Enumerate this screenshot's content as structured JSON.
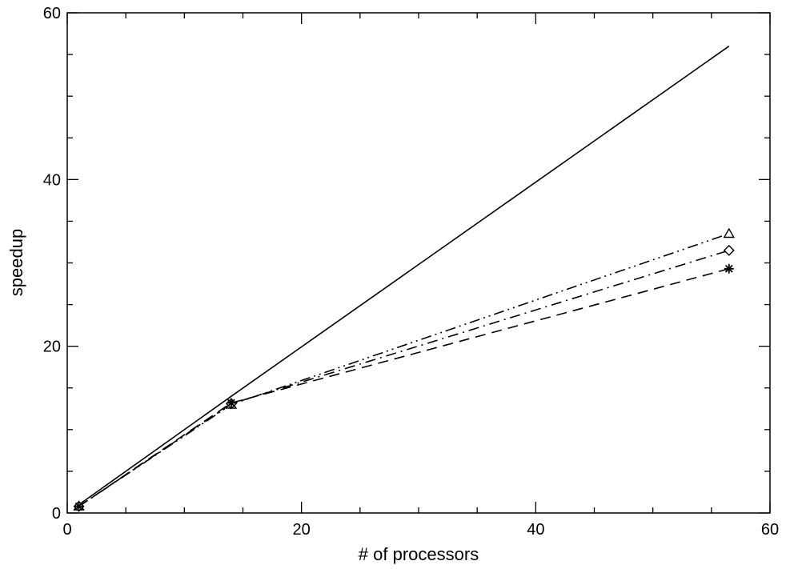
{
  "chart_data": {
    "type": "line",
    "title": "",
    "xlabel": "# of processors",
    "ylabel": "speedup",
    "xlim": [
      0,
      60
    ],
    "ylim": [
      0,
      60
    ],
    "xticks": [
      0,
      20,
      40,
      60
    ],
    "yticks": [
      0,
      20,
      40,
      60
    ],
    "grid": false,
    "series": [
      {
        "style": "solid",
        "marker": "none",
        "x": [
          1,
          14,
          56.5
        ],
        "y": [
          1,
          14,
          56
        ]
      },
      {
        "style": "dash-dot-dot",
        "marker": "triangle",
        "x": [
          1,
          14,
          56.5
        ],
        "y": [
          0.8,
          13.0,
          33.5
        ]
      },
      {
        "style": "dash-dot",
        "marker": "diamond",
        "x": [
          1,
          14,
          56.5
        ],
        "y": [
          0.8,
          13.1,
          31.5
        ]
      },
      {
        "style": "dashed",
        "marker": "asterisk",
        "x": [
          1,
          14,
          56.5
        ],
        "y": [
          0.8,
          13.2,
          29.3
        ]
      }
    ]
  }
}
